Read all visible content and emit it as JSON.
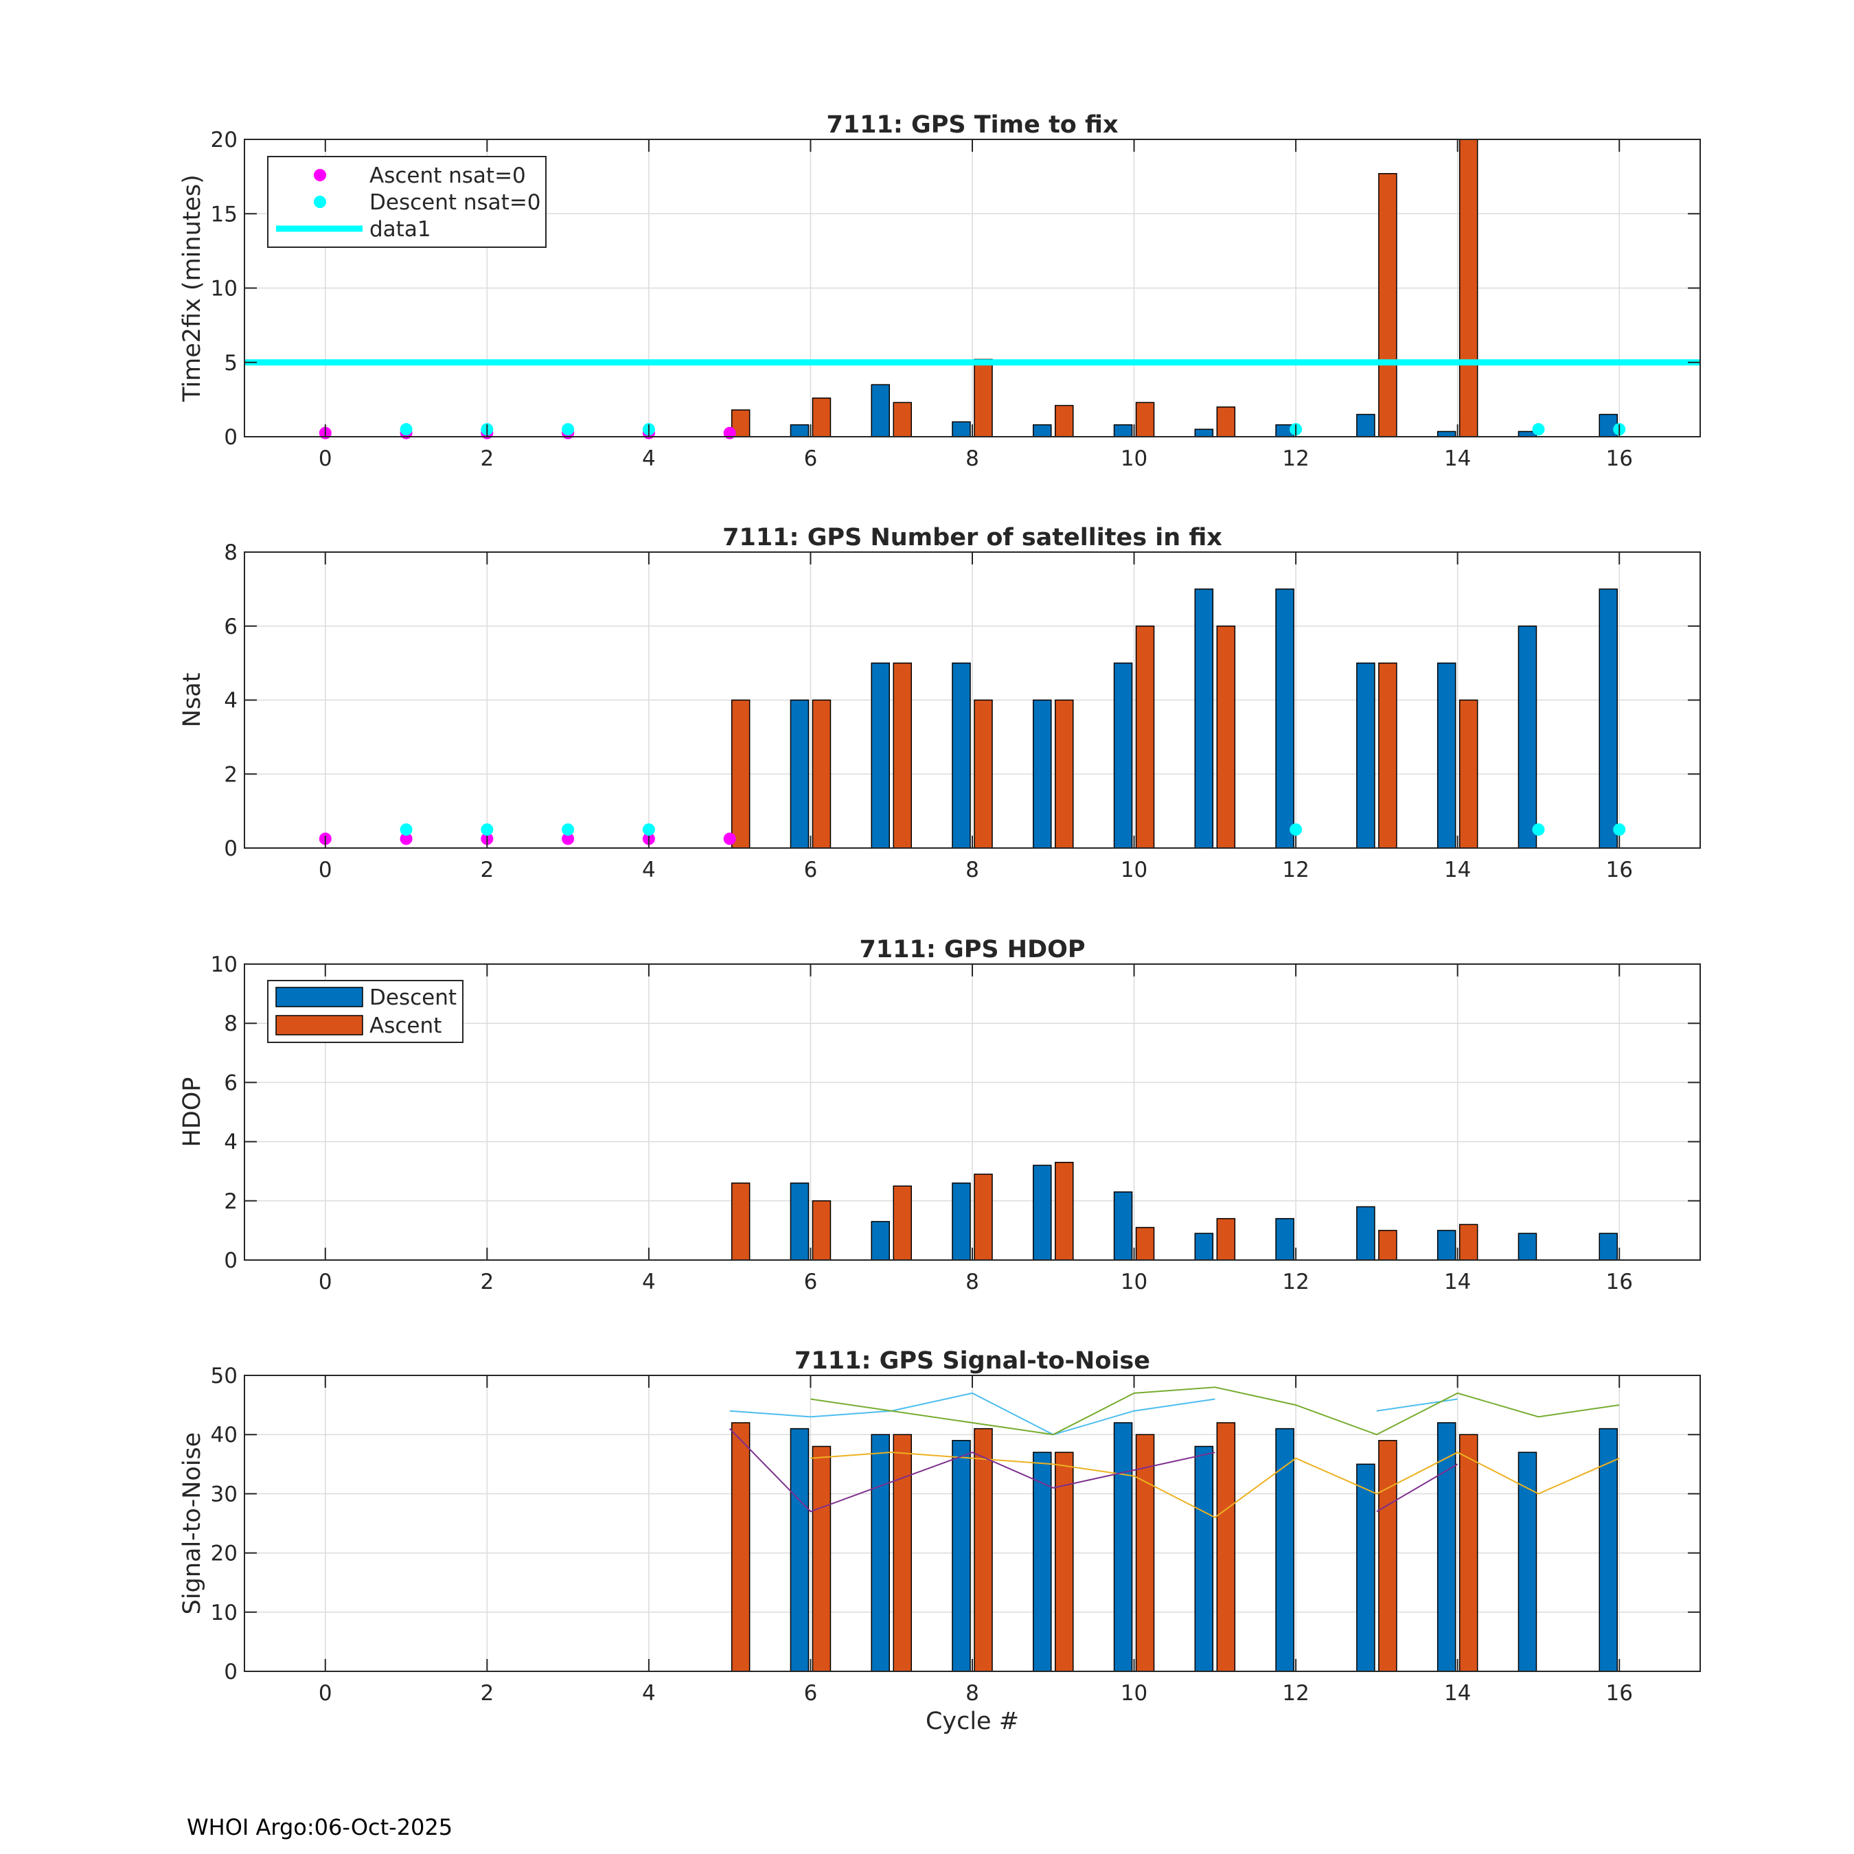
{
  "footer": "WHOI Argo:06-Oct-2025",
  "colors": {
    "descent": "#0072BD",
    "ascent": "#D95319",
    "ascent_nsat0": "#FF00FF",
    "descent_nsat0": "#00FFFF",
    "grid": "#dcdcdc",
    "snr_lines": [
      "#4DBEEE",
      "#77AC30",
      "#EDB120",
      "#7E2F8E"
    ]
  },
  "chart_data": [
    {
      "type": "bar",
      "title": "7111: GPS Time to fix",
      "xlabel": "",
      "ylabel": "Time2fix (minutes)",
      "xlim": [
        -1,
        17
      ],
      "ylim": [
        0,
        20
      ],
      "xticks": [
        0,
        2,
        4,
        6,
        8,
        10,
        12,
        14,
        16
      ],
      "yticks": [
        0,
        5,
        10,
        15,
        20
      ],
      "x": [
        0,
        1,
        2,
        3,
        4,
        5,
        6,
        7,
        8,
        9,
        10,
        11,
        12,
        13,
        14,
        15,
        16
      ],
      "series": [
        {
          "name": "Descent",
          "values": [
            null,
            null,
            null,
            null,
            null,
            null,
            0.8,
            3.5,
            1.0,
            0.8,
            0.8,
            0.5,
            0.8,
            1.5,
            0.35,
            0.35,
            1.5
          ]
        },
        {
          "name": "Ascent",
          "values": [
            null,
            null,
            null,
            null,
            null,
            1.8,
            2.6,
            2.3,
            5.2,
            2.1,
            2.3,
            2.0,
            null,
            17.7,
            20.0,
            null,
            null
          ]
        }
      ],
      "markers": [
        {
          "name": "Ascent nsat=0",
          "x": [
            0,
            1,
            2,
            3,
            4,
            5
          ],
          "y": [
            0.25,
            0.25,
            0.25,
            0.25,
            0.25,
            0.25
          ]
        },
        {
          "name": "Descent nsat=0",
          "x": [
            1,
            2,
            3,
            4,
            12,
            15,
            16
          ],
          "y": [
            0.5,
            0.5,
            0.5,
            0.5,
            0.5,
            0.5,
            0.5
          ]
        }
      ],
      "hline": {
        "name": "data1",
        "y": 5
      },
      "legend": {
        "position": "top-left",
        "entries": [
          "Ascent nsat=0",
          "Descent nsat=0",
          "data1"
        ]
      }
    },
    {
      "type": "bar",
      "title": "7111: GPS Number of satellites in fix",
      "xlabel": "",
      "ylabel": "Nsat",
      "xlim": [
        -1,
        17
      ],
      "ylim": [
        0,
        8
      ],
      "xticks": [
        0,
        2,
        4,
        6,
        8,
        10,
        12,
        14,
        16
      ],
      "yticks": [
        0,
        2,
        4,
        6,
        8
      ],
      "x": [
        0,
        1,
        2,
        3,
        4,
        5,
        6,
        7,
        8,
        9,
        10,
        11,
        12,
        13,
        14,
        15,
        16
      ],
      "series": [
        {
          "name": "Descent",
          "values": [
            null,
            null,
            null,
            null,
            null,
            null,
            4,
            5,
            5,
            4,
            5,
            7,
            7,
            5,
            5,
            6,
            7
          ]
        },
        {
          "name": "Ascent",
          "values": [
            null,
            null,
            null,
            null,
            null,
            4,
            4,
            5,
            4,
            4,
            6,
            6,
            null,
            5,
            4,
            null,
            null
          ]
        }
      ],
      "markers": [
        {
          "name": "Ascent nsat=0",
          "x": [
            0,
            1,
            2,
            3,
            4,
            5
          ],
          "y": [
            0.25,
            0.25,
            0.25,
            0.25,
            0.25,
            0.25
          ]
        },
        {
          "name": "Descent nsat=0",
          "x": [
            1,
            2,
            3,
            4,
            12,
            15,
            16
          ],
          "y": [
            0.5,
            0.5,
            0.5,
            0.5,
            0.5,
            0.5,
            0.5
          ]
        }
      ]
    },
    {
      "type": "bar",
      "title": "7111: GPS HDOP",
      "xlabel": "",
      "ylabel": "HDOP",
      "xlim": [
        -1,
        17
      ],
      "ylim": [
        0,
        10
      ],
      "xticks": [
        0,
        2,
        4,
        6,
        8,
        10,
        12,
        14,
        16
      ],
      "yticks": [
        0,
        2,
        4,
        6,
        8,
        10
      ],
      "x": [
        0,
        1,
        2,
        3,
        4,
        5,
        6,
        7,
        8,
        9,
        10,
        11,
        12,
        13,
        14,
        15,
        16
      ],
      "series": [
        {
          "name": "Descent",
          "values": [
            null,
            null,
            null,
            null,
            null,
            null,
            2.6,
            1.3,
            2.6,
            3.2,
            2.3,
            0.9,
            1.4,
            1.8,
            1.0,
            0.9,
            0.9
          ]
        },
        {
          "name": "Ascent",
          "values": [
            null,
            null,
            null,
            null,
            null,
            2.6,
            2.0,
            2.5,
            2.9,
            3.3,
            1.1,
            1.4,
            null,
            1.0,
            1.2,
            null,
            null
          ]
        }
      ],
      "legend": {
        "position": "top-left",
        "entries": [
          "Descent",
          "Ascent"
        ]
      }
    },
    {
      "type": "bar",
      "title": "7111: GPS Signal-to-Noise",
      "xlabel": "Cycle #",
      "ylabel": "Signal-to-Noise",
      "xlim": [
        -1,
        17
      ],
      "ylim": [
        0,
        50
      ],
      "xticks": [
        0,
        2,
        4,
        6,
        8,
        10,
        12,
        14,
        16
      ],
      "yticks": [
        0,
        10,
        20,
        30,
        40,
        50
      ],
      "x": [
        0,
        1,
        2,
        3,
        4,
        5,
        6,
        7,
        8,
        9,
        10,
        11,
        12,
        13,
        14,
        15,
        16
      ],
      "series": [
        {
          "name": "Descent",
          "values": [
            null,
            null,
            null,
            null,
            null,
            null,
            41,
            40,
            39,
            37,
            42,
            38,
            41,
            35,
            42,
            37,
            41
          ]
        },
        {
          "name": "Ascent",
          "values": [
            null,
            null,
            null,
            null,
            null,
            42,
            38,
            40,
            41,
            37,
            40,
            42,
            null,
            39,
            40,
            null,
            null
          ]
        }
      ],
      "lines": [
        {
          "name": "snr-line-1",
          "x": [
            5,
            6,
            7,
            8,
            9,
            10,
            11
          ],
          "y": [
            44,
            43,
            44,
            47,
            40,
            44,
            46
          ]
        },
        {
          "name": "snr-line-2",
          "x": [
            13,
            14
          ],
          "y": [
            44,
            46
          ]
        },
        {
          "name": "snr-line-3",
          "x": [
            6,
            9,
            10,
            11,
            12,
            13,
            14,
            15,
            16
          ],
          "y": [
            46,
            40,
            47,
            48,
            45,
            40,
            47,
            43,
            45
          ]
        },
        {
          "name": "snr-line-4",
          "x": [
            6,
            7,
            8,
            9,
            10,
            11,
            12,
            13,
            14,
            15,
            16
          ],
          "y": [
            36,
            37,
            36,
            35,
            33,
            26,
            36,
            30,
            37,
            30,
            36
          ]
        },
        {
          "name": "snr-line-5",
          "x": [
            5,
            6,
            8,
            9,
            11
          ],
          "y": [
            41,
            27,
            37,
            31,
            37
          ]
        },
        {
          "name": "snr-line-6",
          "x": [
            13,
            14
          ],
          "y": [
            27,
            35
          ]
        }
      ]
    }
  ]
}
